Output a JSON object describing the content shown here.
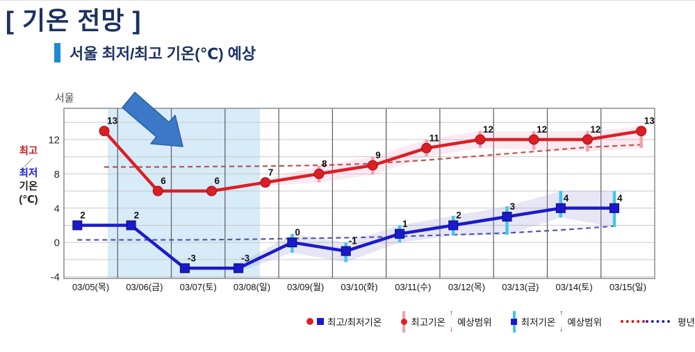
{
  "page": {
    "title": "[ 기온 전망 ]",
    "subtitle": "서울 최저/최고 기온(℃) 예상"
  },
  "labels": {
    "axis_max": "최고",
    "axis_slash": "／",
    "axis_min": "최저",
    "axis_line3": "기온",
    "axis_line4": "(℃)"
  },
  "legend": {
    "maxmin": "최고/최저기온",
    "max_range_pre": "최고기온",
    "max_range_post": "예상범위",
    "min_range_pre": "최저기온",
    "min_range_post": "예상범위",
    "normal": "평년",
    "up_arrow": "↑",
    "down_arrow": "↓"
  },
  "colors": {
    "title_navy": "#1b3261",
    "subtitle_bar_blue": "#1d8ad2",
    "max_red": "#dc1e26",
    "min_blue": "#1a1acc",
    "err_red": "#efa3ad",
    "err_cyan": "#45c5ee",
    "normal_red_dashed": "#c0504d",
    "normal_blue_dashed": "#5456ad",
    "band_red": "rgba(235,160,190,0.22)",
    "band_blue": "rgba(155,155,215,0.25)",
    "highlight_blue": "#d7ebf8",
    "arrow_blue": "#3c78c8",
    "arrow_border": "#2c5e9e",
    "grid_h": "#c9c9c9",
    "grid_v": "#5a5a5a",
    "plot_border": "#8c8c8c"
  },
  "chart_data": {
    "type": "line",
    "title": "서울 최저/최고 기온(℃) 예상",
    "region": "서울",
    "categories": [
      "03/05(목)",
      "03/06(금)",
      "03/07(토)",
      "03/08(일)",
      "03/09(월)",
      "03/10(화)",
      "03/11(수)",
      "03/12(목)",
      "03/13(금)",
      "03/14(토)",
      "03/15(일)"
    ],
    "xlabel": "",
    "ylabel": "최고/최저 기온(℃)",
    "ylim": [
      -4.2,
      15.6
    ],
    "yticks": [
      12,
      8,
      4,
      0,
      -4
    ],
    "grid_step": 2,
    "grid": true,
    "legend_position": "bottom-right",
    "highlighted_days": [
      "03/06(금)",
      "03/07(토)",
      "03/08(일)"
    ],
    "series": [
      {
        "name": "최고기온",
        "type": "line-marker",
        "marker": "circle",
        "color": "#dc1e26",
        "values": [
          13,
          6,
          6,
          7,
          8,
          9,
          11,
          12,
          12,
          12,
          13
        ],
        "range": [
          null,
          null,
          null,
          null,
          [
            7,
            8.9
          ],
          [
            7.9,
            10
          ],
          [
            10,
            12
          ],
          [
            11,
            13
          ],
          [
            10.8,
            13
          ],
          [
            10.6,
            13
          ],
          [
            11,
            13.5
          ]
        ],
        "band": [
          null,
          null,
          null,
          [
            6.6,
            7.4
          ],
          [
            7,
            8.9
          ],
          [
            7.9,
            10
          ],
          [
            10,
            12
          ],
          [
            11,
            13
          ],
          [
            10.8,
            13
          ],
          [
            10.6,
            13
          ],
          [
            11,
            13.5
          ]
        ]
      },
      {
        "name": "최저기온",
        "type": "line-marker",
        "marker": "square",
        "color": "#1a1acc",
        "values": [
          2,
          2,
          -3,
          -3,
          0,
          -1,
          1,
          2,
          3,
          4,
          4
        ],
        "range": [
          null,
          null,
          null,
          null,
          [
            -1.2,
            1
          ],
          [
            -2.3,
            0
          ],
          [
            0,
            2
          ],
          [
            0.8,
            3.1
          ],
          [
            0.9,
            4.2
          ],
          [
            2.9,
            6.0
          ],
          [
            1.8,
            6.0
          ]
        ],
        "band": [
          null,
          null,
          null,
          [
            -3.4,
            -2.6
          ],
          [
            -1.2,
            1
          ],
          [
            -2.3,
            0
          ],
          [
            0,
            2
          ],
          [
            0.8,
            3.1
          ],
          [
            0.9,
            4.2
          ],
          [
            2.9,
            6.0
          ],
          [
            1.8,
            6.0
          ]
        ]
      },
      {
        "name": "평년 최고",
        "type": "dashed",
        "color": "#c0504d",
        "values": [
          8.8,
          8.8,
          8.85,
          8.9,
          9.0,
          9.2,
          9.6,
          10.1,
          10.6,
          11.1,
          11.4
        ]
      },
      {
        "name": "평년 최저",
        "type": "dashed",
        "color": "#5456ad",
        "values": [
          0.3,
          0.3,
          0.3,
          0.35,
          0.45,
          0.55,
          0.7,
          0.9,
          1.1,
          1.45,
          1.9
        ]
      }
    ]
  }
}
